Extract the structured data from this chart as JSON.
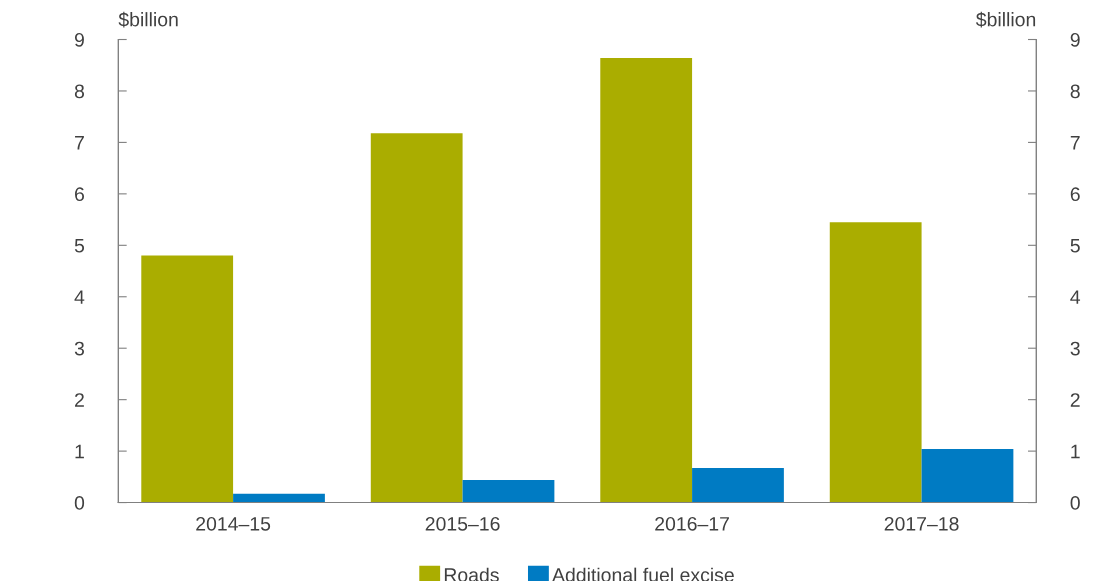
{
  "chart_data": {
    "type": "bar",
    "ylabel": "$billion",
    "y2label": "$billion",
    "categories": [
      "2014–15",
      "2015–16",
      "2016–17",
      "2017–18"
    ],
    "series": [
      {
        "name": "Roads",
        "color": "#aaad00",
        "values": [
          4.8,
          7.18,
          8.64,
          5.45
        ]
      },
      {
        "name": "Additional fuel excise",
        "color": "#007bc3",
        "values": [
          0.17,
          0.44,
          0.67,
          1.04
        ]
      }
    ],
    "ylim": [
      0,
      9
    ],
    "yticks": [
      0,
      1,
      2,
      3,
      4,
      5,
      6,
      7,
      8,
      9
    ],
    "y2lim": [
      0,
      9
    ],
    "y2ticks": [
      0,
      1,
      2,
      3,
      4,
      5,
      6,
      7,
      8,
      9
    ],
    "grid": false,
    "legend": "bottom"
  }
}
